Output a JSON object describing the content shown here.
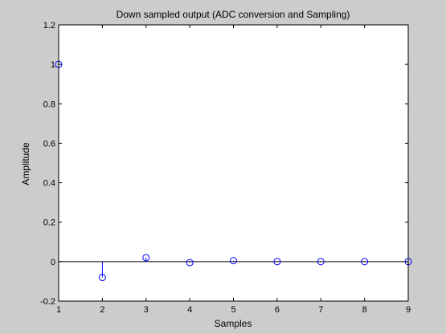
{
  "chart_data": {
    "type": "stem",
    "title": "Down sampled output (ADC conversion and Sampling)",
    "xlabel": "Samples",
    "ylabel": "Amplitude",
    "xlim": [
      1,
      9
    ],
    "ylim": [
      -0.2,
      1.2
    ],
    "xticks": [
      "1",
      "2",
      "3",
      "4",
      "5",
      "6",
      "7",
      "8",
      "9"
    ],
    "yticks": [
      "-0.2",
      "0",
      "0.2",
      "0.4",
      "0.6",
      "0.8",
      "1",
      "1.2"
    ],
    "grid": false,
    "baseline": 0,
    "x": [
      1,
      2,
      3,
      4,
      5,
      6,
      7,
      8,
      9
    ],
    "values": [
      1.0,
      -0.08,
      0.02,
      -0.005,
      0.005,
      0.0,
      0.0,
      0.0,
      0.0
    ]
  },
  "colors": {
    "figure_background": "#cccccc",
    "plot_background": "#ffffff",
    "stem": "#0000ff",
    "axes": "#000000"
  }
}
